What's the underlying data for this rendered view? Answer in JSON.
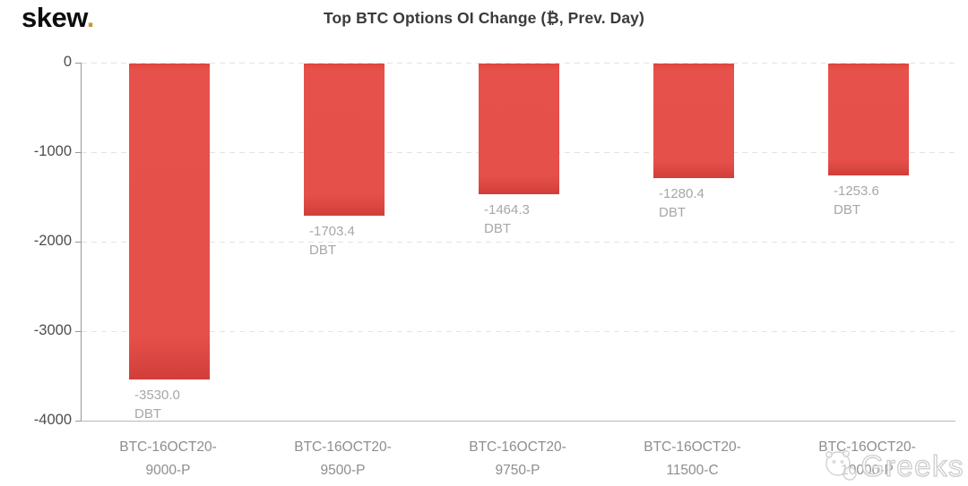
{
  "brand": {
    "logo_text": "skew",
    "logo_dot": ".",
    "logo_dot_color": "#c79a3a"
  },
  "chart_data": {
    "type": "bar",
    "title": "Top BTC Options OI Change (₿, Prev. Day)",
    "categories": [
      "BTC-16OCT20-9000-P",
      "BTC-16OCT20-9500-P",
      "BTC-16OCT20-9750-P",
      "BTC-16OCT20-11500-C",
      "BTC-16OCT20-10000-P"
    ],
    "category_lines": [
      [
        "BTC-16OCT20-",
        "9000-P"
      ],
      [
        "BTC-16OCT20-",
        "9500-P"
      ],
      [
        "BTC-16OCT20-",
        "9750-P"
      ],
      [
        "BTC-16OCT20-",
        "11500-C"
      ],
      [
        "BTC-16OCT20-",
        "10000-P"
      ]
    ],
    "values": [
      -3530.0,
      -1703.4,
      -1464.3,
      -1280.4,
      -1253.6
    ],
    "value_labels": [
      "-3530.0",
      "-1703.4",
      "-1464.3",
      "-1280.4",
      "-1253.6"
    ],
    "unit": "DBT",
    "xlabel": "",
    "ylabel": "",
    "ylim": [
      -4000,
      0
    ],
    "yticks": [
      0,
      -1000,
      -2000,
      -3000,
      -4000
    ],
    "ytick_labels": [
      "0",
      "-1000",
      "-2000",
      "-3000",
      "-4000"
    ],
    "grid": "horizontal-dashed",
    "legend": "none",
    "bar_color": "#e6504a",
    "bar_color_dark": "#d13e3a",
    "value_label_color": "#a7a7a7"
  },
  "watermark": {
    "text": "Greeks",
    "icon": "wechat-account-logo"
  }
}
